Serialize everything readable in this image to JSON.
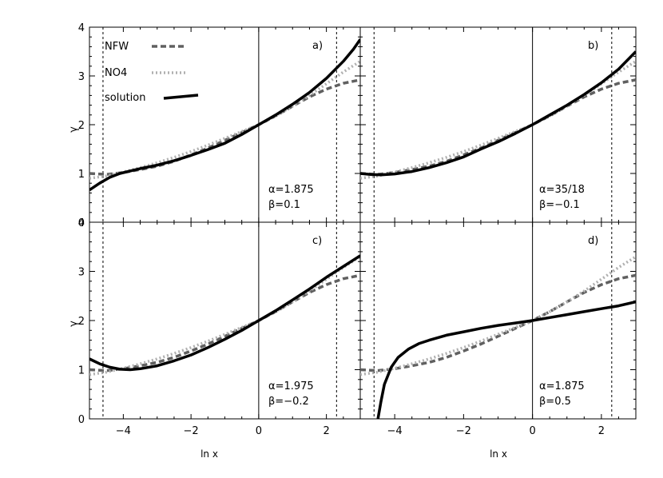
{
  "chart_data": {
    "type": "line",
    "layout": "2x2 panels sharing x (ln x) and y (gamma) axes",
    "xlabel": "ln x",
    "ylabel": "γ",
    "xlim": [
      -5,
      3
    ],
    "ylim": [
      0,
      4
    ],
    "x_ticks": [
      -4,
      -2,
      0,
      2
    ],
    "y_ticks": [
      0,
      1,
      2,
      3,
      4
    ],
    "grid": false,
    "legend": {
      "placement": "top-left of panel a",
      "entries": [
        {
          "label": "NFW",
          "style": "dashed",
          "color": "#606060"
        },
        {
          "label": "NO4",
          "style": "dotted",
          "color": "#b0b0b0"
        },
        {
          "label": "solution",
          "style": "solid",
          "color": "#000000"
        }
      ]
    },
    "reference_lines": [
      {
        "x": -4.6,
        "style": "dashed",
        "description": "vertical dashed line"
      },
      {
        "x": 0,
        "style": "solid",
        "description": "vertical solid line"
      },
      {
        "x": 2.3,
        "style": "dashed",
        "description": "vertical dashed line"
      }
    ],
    "shared_series": [
      {
        "name": "NFW",
        "x": [
          -5,
          -4.5,
          -4,
          -3.5,
          -3,
          -2.5,
          -2,
          -1.5,
          -1,
          -0.5,
          0,
          0.5,
          1,
          1.5,
          2,
          2.5,
          3
        ],
        "y": [
          1.0,
          0.98,
          1.02,
          1.08,
          1.15,
          1.25,
          1.38,
          1.52,
          1.68,
          1.84,
          2.0,
          2.18,
          2.38,
          2.57,
          2.73,
          2.85,
          2.92
        ]
      },
      {
        "name": "NO4",
        "x": [
          -5,
          -4.5,
          -4,
          -3.5,
          -3,
          -2.5,
          -2,
          -1.5,
          -1,
          -0.5,
          0,
          0.5,
          1,
          1.5,
          2,
          2.5,
          3
        ],
        "y": [
          0.9,
          0.95,
          1.03,
          1.12,
          1.22,
          1.33,
          1.45,
          1.58,
          1.72,
          1.86,
          2.0,
          2.18,
          2.38,
          2.6,
          2.84,
          3.08,
          3.3
        ]
      }
    ],
    "panels": [
      {
        "label": "a)",
        "alpha": "α=1.875",
        "beta": "β=0.1",
        "solution": {
          "x": [
            -5,
            -4.7,
            -4.4,
            -4.1,
            -3.8,
            -3.5,
            -3,
            -2.5,
            -2,
            -1.5,
            -1,
            -0.5,
            0,
            0.5,
            1,
            1.5,
            2,
            2.5,
            2.8,
            3
          ],
          "y": [
            0.66,
            0.8,
            0.92,
            1.0,
            1.05,
            1.1,
            1.17,
            1.26,
            1.37,
            1.49,
            1.62,
            1.8,
            2.0,
            2.2,
            2.42,
            2.66,
            2.95,
            3.3,
            3.55,
            3.75
          ]
        }
      },
      {
        "label": "b)",
        "alpha": "α=35/18",
        "beta": "β=−0.1",
        "solution": {
          "x": [
            -5,
            -4.7,
            -4.4,
            -4,
            -3.5,
            -3,
            -2.5,
            -2,
            -1.5,
            -1,
            -0.5,
            0,
            0.5,
            1,
            1.5,
            2,
            2.5,
            3
          ],
          "y": [
            1.0,
            0.98,
            0.97,
            0.99,
            1.04,
            1.12,
            1.22,
            1.34,
            1.5,
            1.65,
            1.82,
            2.0,
            2.2,
            2.4,
            2.62,
            2.86,
            3.14,
            3.5
          ]
        }
      },
      {
        "label": "c)",
        "alpha": "α=1.975",
        "beta": "β=−0.2",
        "solution": {
          "x": [
            -5,
            -4.7,
            -4.4,
            -4.1,
            -3.8,
            -3.5,
            -3,
            -2.5,
            -2,
            -1.5,
            -1,
            -0.5,
            0,
            0.5,
            1,
            1.5,
            2,
            2.5,
            3
          ],
          "y": [
            1.22,
            1.12,
            1.05,
            1.01,
            1.0,
            1.02,
            1.08,
            1.18,
            1.3,
            1.45,
            1.62,
            1.8,
            2.0,
            2.2,
            2.42,
            2.64,
            2.88,
            3.1,
            3.32
          ]
        }
      },
      {
        "label": "d)",
        "alpha": "α=1.875",
        "beta": "β=0.5",
        "solution": {
          "x": [
            -4.5,
            -4.4,
            -4.3,
            -4.1,
            -3.9,
            -3.6,
            -3.3,
            -3,
            -2.5,
            -2,
            -1.5,
            -1,
            -0.5,
            0,
            0.5,
            1,
            1.5,
            2,
            2.5,
            3
          ],
          "y": [
            -0.05,
            0.35,
            0.7,
            1.05,
            1.25,
            1.42,
            1.53,
            1.6,
            1.7,
            1.77,
            1.84,
            1.9,
            1.95,
            2.0,
            2.06,
            2.12,
            2.18,
            2.24,
            2.3,
            2.38
          ]
        }
      }
    ]
  }
}
